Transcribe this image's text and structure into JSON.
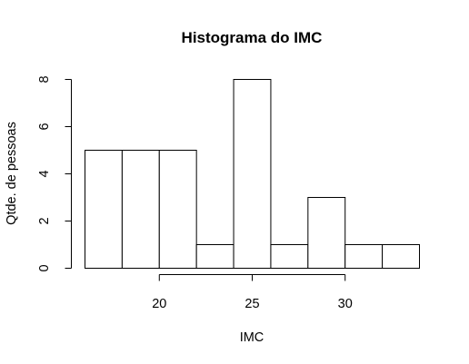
{
  "chart_data": {
    "type": "bar",
    "title": "Histograma do IMC",
    "xlabel": "IMC",
    "ylabel": "Qtde. de pessoas",
    "bins": [
      {
        "start": 16,
        "end": 18,
        "count": 5
      },
      {
        "start": 18,
        "end": 20,
        "count": 5
      },
      {
        "start": 20,
        "end": 22,
        "count": 5
      },
      {
        "start": 22,
        "end": 24,
        "count": 1
      },
      {
        "start": 24,
        "end": 26,
        "count": 8
      },
      {
        "start": 26,
        "end": 28,
        "count": 1
      },
      {
        "start": 28,
        "end": 30,
        "count": 3
      },
      {
        "start": 30,
        "end": 32,
        "count": 1
      },
      {
        "start": 32,
        "end": 34,
        "count": 1
      }
    ],
    "x_ticks": [
      20,
      25,
      30
    ],
    "y_ticks": [
      0,
      2,
      4,
      6,
      8
    ],
    "xlim": [
      16,
      34
    ],
    "ylim": [
      0,
      8
    ],
    "grid": false,
    "colors": {
      "bar_fill": "#ffffff",
      "bar_stroke": "#000000"
    }
  }
}
